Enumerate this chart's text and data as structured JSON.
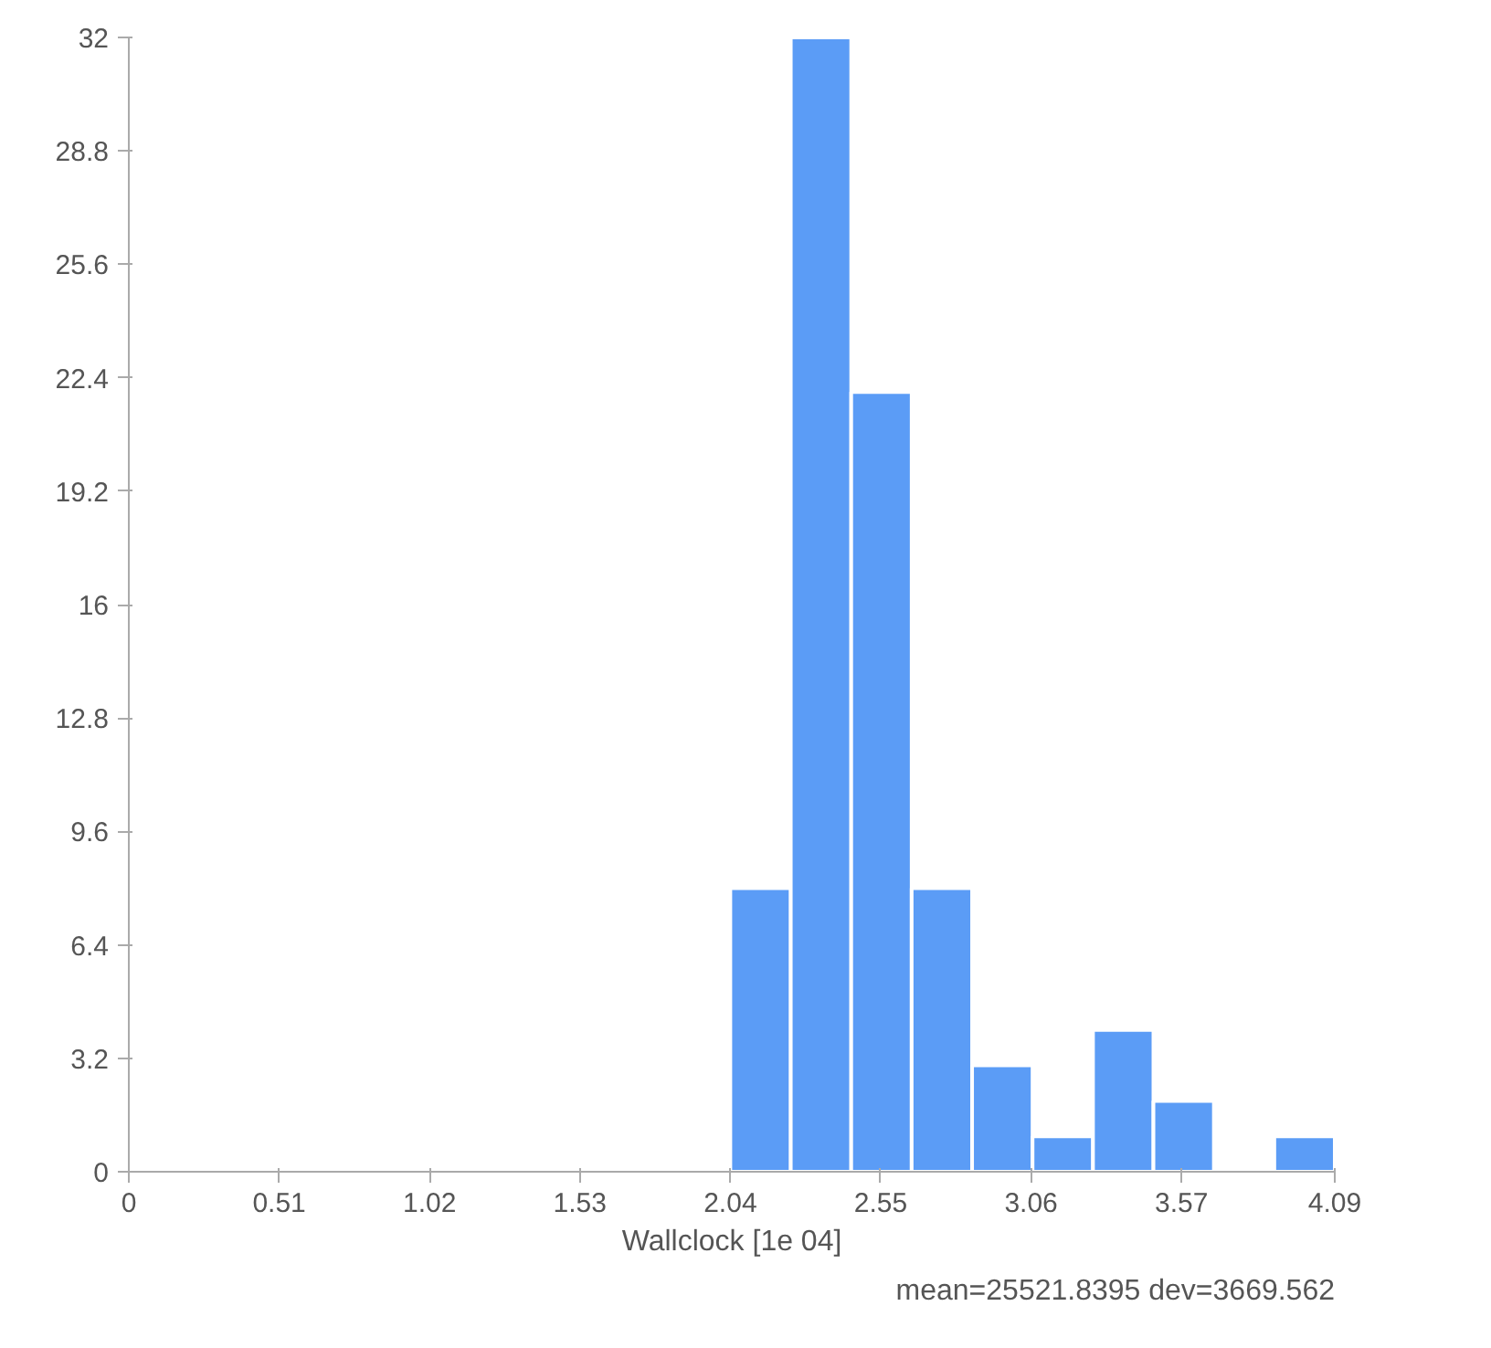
{
  "chart_data": {
    "type": "histogram",
    "xlabel": "Wallclock [1e 04]",
    "bins": [
      2.04,
      2.245,
      2.45,
      2.655,
      2.86,
      3.065,
      3.27,
      3.475,
      3.68,
      3.885,
      4.09
    ],
    "values": [
      8,
      32,
      22,
      8,
      3,
      1,
      4,
      2,
      0,
      1
    ],
    "color": "#5b9cf6",
    "xlim": [
      0,
      4.09
    ],
    "xticks": [
      0,
      0.51,
      1.02,
      1.53,
      2.04,
      2.55,
      3.06,
      3.57,
      4.09
    ],
    "ylim": [
      0,
      32
    ],
    "yticks": [
      0,
      3.2,
      6.4,
      9.6,
      12.8,
      16,
      19.2,
      22.4,
      25.6,
      28.8,
      32
    ],
    "grid": false,
    "annotations": [
      "mean=25521.8395 dev=3669.562"
    ]
  }
}
